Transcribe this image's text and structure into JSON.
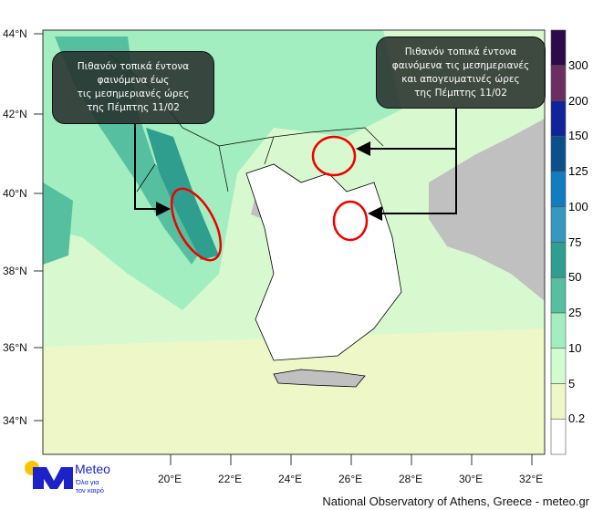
{
  "annotations": [
    {
      "lines": [
        "Πιθανόν τοπικά έντονα",
        "φαινόμενα έως",
        "τις μεσημεριανές ώρες",
        "της Πέμπτης 11/02"
      ]
    },
    {
      "lines": [
        "Πιθανόν τοπικά έντονα",
        "φαινόμενα τις μεσημεριανές",
        "και απογευματινές ώρες",
        "της Πέμπτης 11/02"
      ]
    }
  ],
  "axes": {
    "lat_ticks": [
      "44°N",
      "42°N",
      "40°N",
      "38°N",
      "36°N",
      "34°N"
    ],
    "lon_ticks": [
      "20°E",
      "22°E",
      "24°E",
      "26°E",
      "28°E",
      "30°E",
      "32°E"
    ]
  },
  "colorbar": {
    "labels": [
      "300",
      "200",
      "150",
      "125",
      "100",
      "75",
      "50",
      "25",
      "10",
      "5",
      "0.2"
    ],
    "colors": [
      "#2d0a4a",
      "#6a2e63",
      "#12229a",
      "#0d4f8a",
      "#137cbf",
      "#3598c0",
      "#2f9e8e",
      "#55bfa0",
      "#a2eec0",
      "#d2fcd0",
      "#eef7c8",
      "#ffffff"
    ]
  },
  "logo": {
    "name": "Meteo",
    "tagline_1": "Όλα για",
    "tagline_2": "τον καιρό",
    "brand_color": "#1a22c8",
    "sun_color": "#f7c500"
  },
  "credit": "National Observatory of Athens, Greece - meteo.gr"
}
